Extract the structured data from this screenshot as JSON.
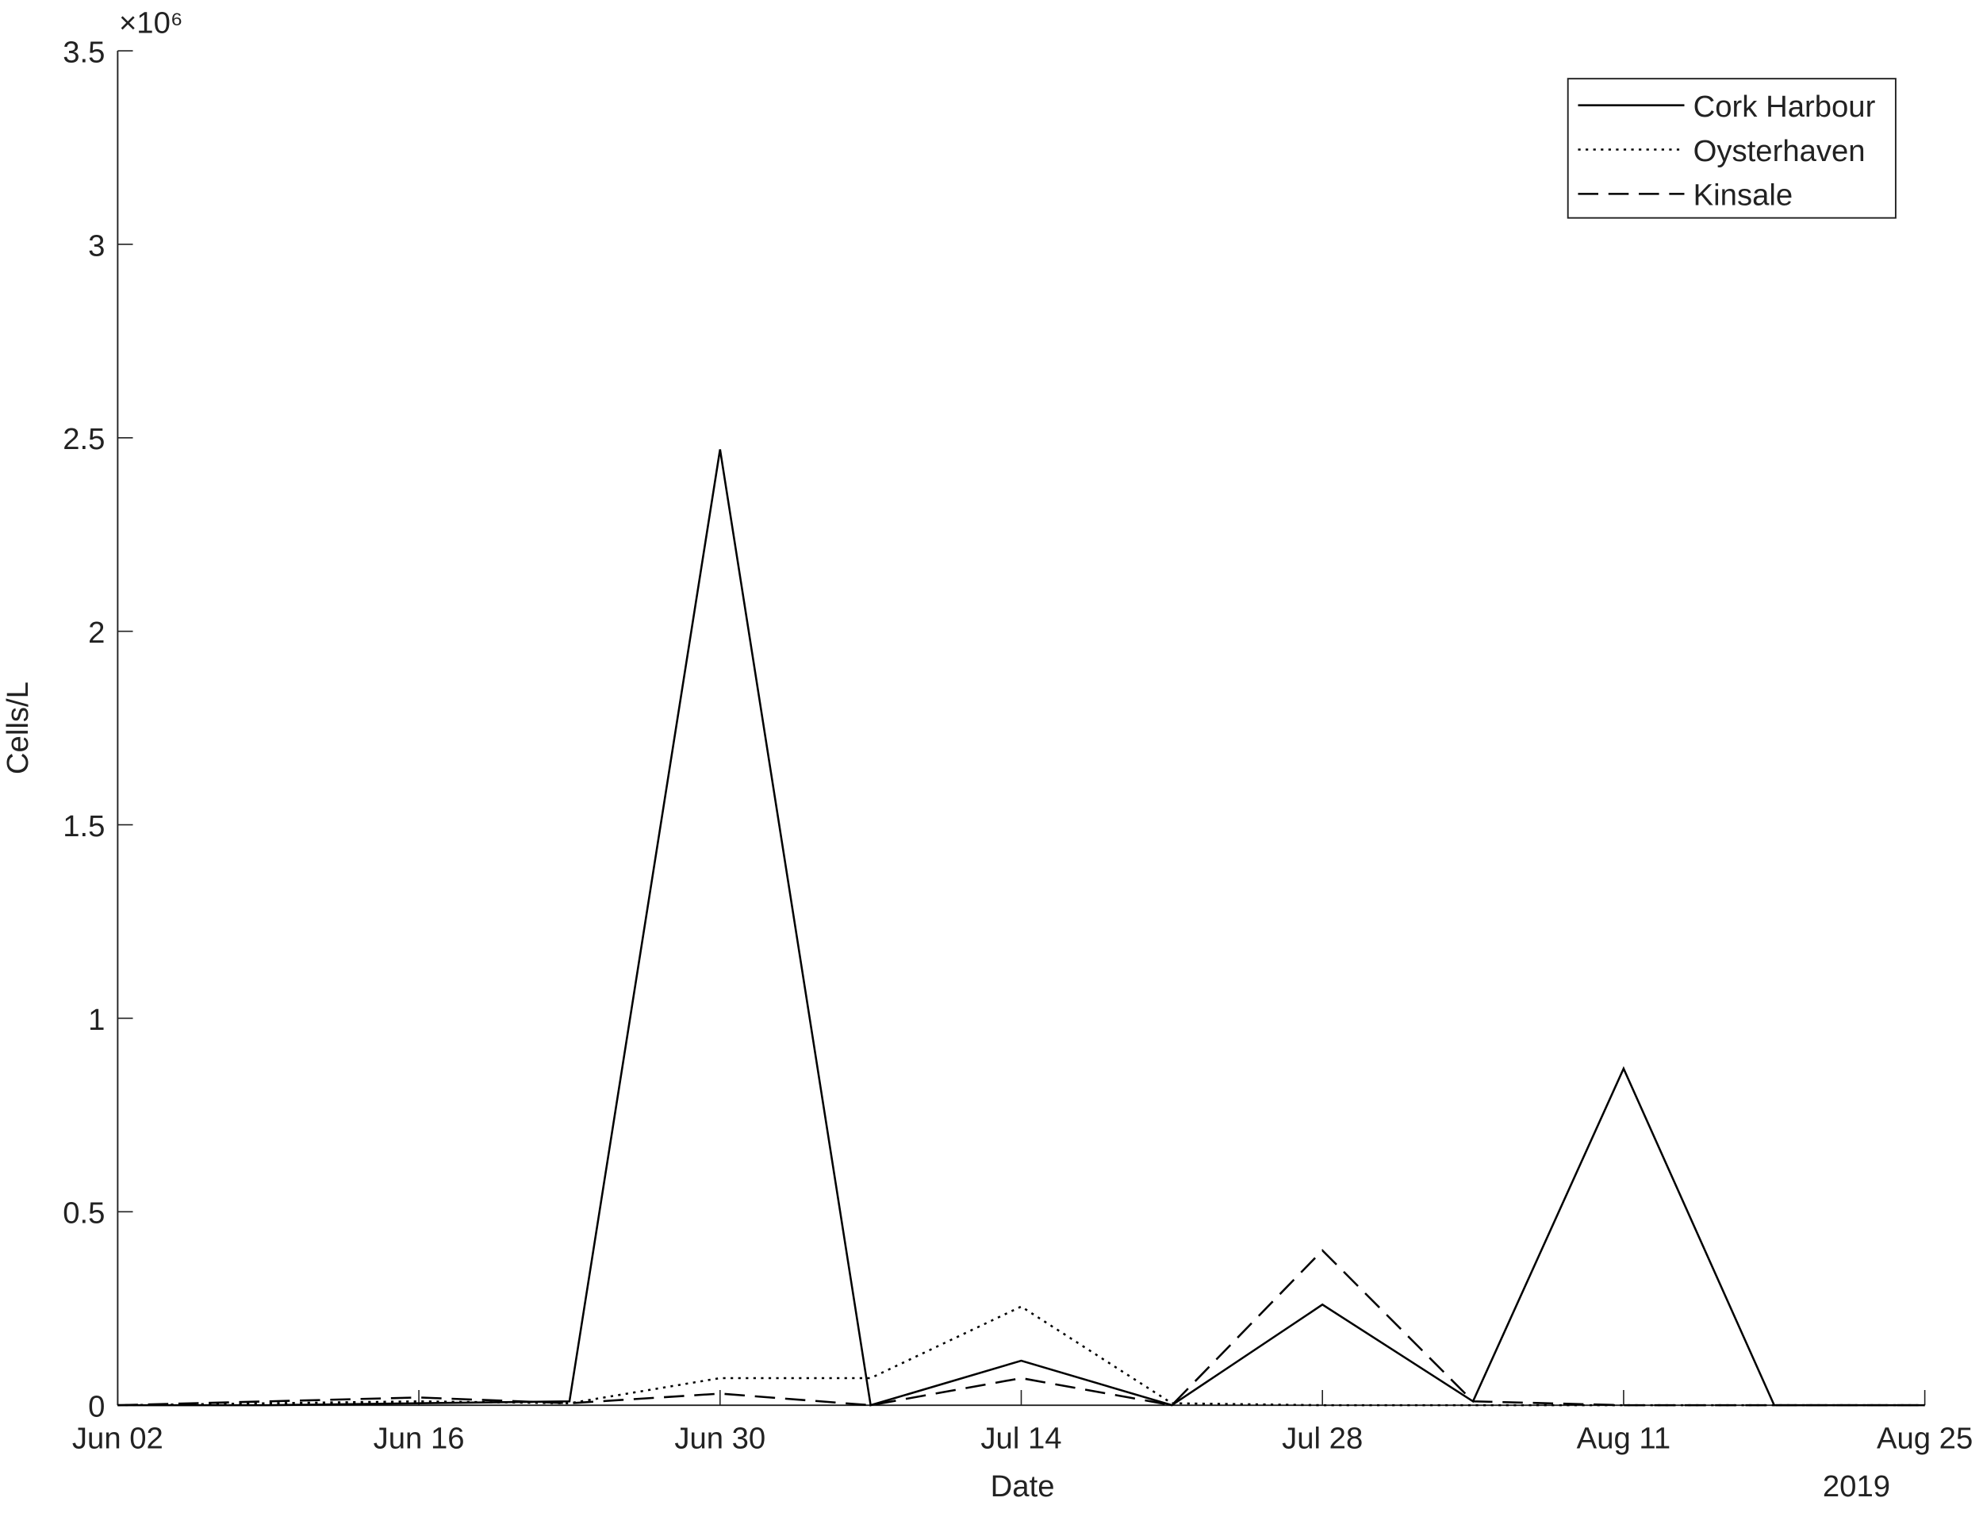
{
  "chart_data": {
    "type": "line",
    "x_label": "Date",
    "y_label": "Cells/L",
    "y_exponent": "×10⁶",
    "x_year_label": "2019",
    "x": [
      "2019-06-02",
      "2019-06-09",
      "2019-06-16",
      "2019-06-23",
      "2019-06-30",
      "2019-07-07",
      "2019-07-14",
      "2019-07-21",
      "2019-07-28",
      "2019-08-04",
      "2019-08-11",
      "2019-08-18",
      "2019-08-25"
    ],
    "series": [
      {
        "name": "Cork Harbour",
        "color": "#000000",
        "linestyle": "solid",
        "values": [
          0,
          0,
          0.005,
          0.01,
          2.47,
          0,
          0.115,
          0,
          0.26,
          0.01,
          0.87,
          0,
          0
        ]
      },
      {
        "name": "Oysterhaven",
        "color": "#000000",
        "linestyle": "dotted",
        "values": [
          0,
          0.005,
          0.01,
          0.005,
          0.07,
          0.07,
          0.255,
          0.005,
          0,
          0,
          0,
          0,
          0
        ]
      },
      {
        "name": "Kinsale",
        "color": "#000000",
        "linestyle": "dashed",
        "values": [
          0,
          0.01,
          0.02,
          0.005,
          0.03,
          0,
          0.07,
          0,
          0.4,
          0.01,
          0,
          0,
          0
        ]
      }
    ],
    "xlim": [
      "2019-06-02",
      "2019-08-25"
    ],
    "xticks": [
      {
        "value": "2019-06-02",
        "label": "Jun 02"
      },
      {
        "value": "2019-06-16",
        "label": "Jun 16"
      },
      {
        "value": "2019-06-30",
        "label": "Jun 30"
      },
      {
        "value": "2019-07-14",
        "label": "Jul 14"
      },
      {
        "value": "2019-07-28",
        "label": "Jul 28"
      },
      {
        "value": "2019-08-11",
        "label": "Aug 11"
      },
      {
        "value": "2019-08-25",
        "label": "Aug 25"
      }
    ],
    "ylim": [
      0,
      3.5
    ],
    "yticks": [
      0,
      0.5,
      1,
      1.5,
      2,
      2.5,
      3,
      3.5
    ],
    "legend": "top-right",
    "grid": false
  }
}
